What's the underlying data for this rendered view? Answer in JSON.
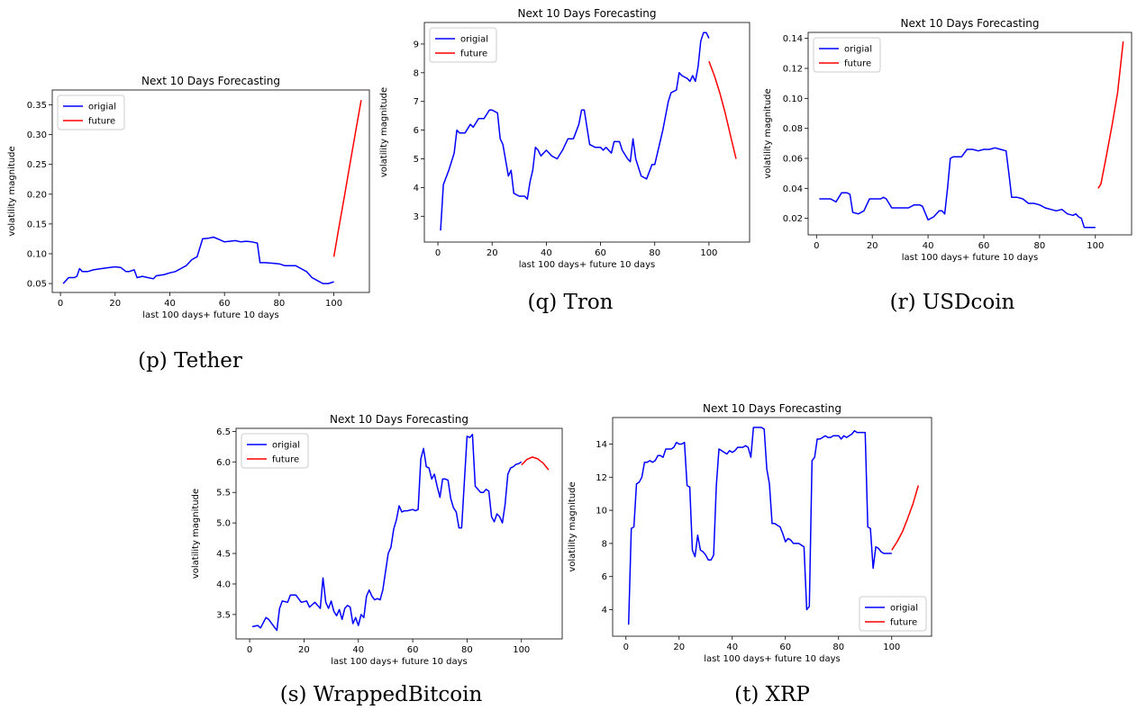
{
  "chart_data": [
    {
      "type": "line",
      "caption": "(p) Tether",
      "title": "Next 10 Days Forecasting",
      "xlabel": "last 100 days+ future 10 days",
      "ylabel": "volatility magnitude",
      "xlim": [
        -3,
        113
      ],
      "ylim": [
        0.035,
        0.375
      ],
      "xticks": [
        0,
        20,
        40,
        60,
        80,
        100
      ],
      "xtick_labels": [
        "0",
        "20",
        "40",
        "60",
        "80",
        "100"
      ],
      "yticks": [
        0.05,
        0.1,
        0.15,
        0.2,
        0.25,
        0.3,
        0.35
      ],
      "ytick_labels": [
        "0.05",
        "0.10",
        "0.15",
        "0.20",
        "0.25",
        "0.30",
        "0.35"
      ],
      "legend": "top-left",
      "series": [
        {
          "name": "origial",
          "color": "#0000ff",
          "x": [
            1,
            2,
            3,
            5,
            6,
            7,
            8,
            10,
            12,
            15,
            18,
            20,
            22,
            24,
            25,
            27,
            28,
            30,
            32,
            34,
            35,
            38,
            40,
            42,
            44,
            46,
            48,
            50,
            52,
            54,
            56,
            58,
            60,
            62,
            64,
            66,
            68,
            70,
            72,
            73,
            75,
            78,
            80,
            82,
            84,
            86,
            88,
            90,
            92,
            94,
            96,
            98,
            100
          ],
          "y": [
            0.05,
            0.055,
            0.06,
            0.06,
            0.062,
            0.075,
            0.07,
            0.07,
            0.073,
            0.075,
            0.077,
            0.078,
            0.077,
            0.07,
            0.07,
            0.073,
            0.06,
            0.062,
            0.06,
            0.058,
            0.063,
            0.065,
            0.068,
            0.07,
            0.075,
            0.08,
            0.09,
            0.095,
            0.125,
            0.126,
            0.128,
            0.124,
            0.12,
            0.121,
            0.122,
            0.12,
            0.121,
            0.12,
            0.118,
            0.085,
            0.085,
            0.084,
            0.083,
            0.08,
            0.08,
            0.08,
            0.075,
            0.07,
            0.06,
            0.055,
            0.05,
            0.05,
            0.053
          ]
        },
        {
          "name": "future",
          "color": "#ff0000",
          "x": [
            100,
            102,
            104,
            106,
            108,
            110
          ],
          "y": [
            0.095,
            0.148,
            0.2,
            0.254,
            0.306,
            0.358
          ]
        }
      ]
    },
    {
      "type": "line",
      "caption": "(q) Tron",
      "title": "Next 10 Days Forecasting",
      "xlabel": "last 100 days+ future 10 days",
      "ylabel": "volatility magnitude",
      "xlim": [
        -5,
        115
      ],
      "ylim": [
        2.1,
        9.75
      ],
      "xticks": [
        0,
        20,
        40,
        60,
        80,
        100
      ],
      "xtick_labels": [
        "0",
        "20",
        "40",
        "60",
        "80",
        "100"
      ],
      "yticks": [
        3,
        4,
        5,
        6,
        7,
        8,
        9
      ],
      "ytick_labels": [
        "3",
        "4",
        "5",
        "6",
        "7",
        "8",
        "9"
      ],
      "legend": "top-left",
      "series": [
        {
          "name": "origial",
          "color": "#0000ff",
          "x": [
            1,
            2,
            4,
            6,
            7,
            8,
            10,
            12,
            13,
            15,
            17,
            19,
            20,
            22,
            23,
            24,
            26,
            27,
            28,
            30,
            32,
            33,
            34,
            35,
            36,
            37,
            38,
            40,
            42,
            44,
            46,
            48,
            50,
            52,
            53,
            54,
            56,
            58,
            60,
            61,
            62,
            64,
            65,
            66,
            67,
            68,
            70,
            71,
            72,
            73,
            75,
            77,
            79,
            80,
            82,
            83,
            85,
            86,
            88,
            89,
            90,
            92,
            93,
            94,
            95,
            96,
            97,
            98,
            99,
            100
          ],
          "y": [
            2.5,
            4.1,
            4.6,
            5.2,
            6.0,
            5.9,
            5.9,
            6.2,
            6.1,
            6.4,
            6.4,
            6.7,
            6.7,
            6.6,
            5.7,
            5.5,
            4.4,
            4.6,
            3.8,
            3.7,
            3.7,
            3.6,
            4.2,
            4.6,
            5.4,
            5.3,
            5.1,
            5.3,
            5.1,
            5.0,
            5.3,
            5.7,
            5.7,
            6.2,
            6.7,
            6.7,
            5.5,
            5.4,
            5.4,
            5.3,
            5.4,
            5.2,
            5.6,
            5.6,
            5.6,
            5.3,
            5.0,
            4.9,
            5.7,
            5.0,
            4.4,
            4.3,
            4.8,
            4.8,
            5.6,
            6.0,
            7.0,
            7.3,
            7.4,
            8.0,
            7.9,
            7.8,
            7.7,
            7.9,
            7.7,
            8.2,
            9.1,
            9.4,
            9.4,
            9.2
          ]
        },
        {
          "name": "future",
          "color": "#ff0000",
          "x": [
            100,
            102,
            104,
            106,
            108,
            110
          ],
          "y": [
            8.4,
            7.9,
            7.3,
            6.6,
            5.8,
            5.0
          ]
        }
      ]
    },
    {
      "type": "line",
      "caption": "(r) USDcoin",
      "title": "Next 10 Days Forecasting",
      "xlabel": "last 100 days+ future 10 days",
      "ylabel": "volatility magnitude",
      "xlim": [
        -3,
        113
      ],
      "ylim": [
        0.009,
        0.144
      ],
      "xticks": [
        0,
        20,
        40,
        60,
        80,
        100
      ],
      "xtick_labels": [
        "0",
        "20",
        "40",
        "60",
        "80",
        "100"
      ],
      "yticks": [
        0.02,
        0.04,
        0.06,
        0.08,
        0.1,
        0.12,
        0.14
      ],
      "ytick_labels": [
        "0.02",
        "0.04",
        "0.06",
        "0.08",
        "0.10",
        "0.12",
        "0.14"
      ],
      "legend": "top-left",
      "series": [
        {
          "name": "origial",
          "color": "#0000ff",
          "x": [
            1,
            3,
            5,
            7,
            9,
            11,
            12,
            13,
            15,
            17,
            19,
            21,
            23,
            24,
            25,
            27,
            29,
            31,
            33,
            35,
            37,
            38,
            40,
            42,
            44,
            45,
            46,
            47,
            48,
            49,
            50,
            52,
            54,
            56,
            58,
            60,
            62,
            64,
            66,
            68,
            69,
            70,
            72,
            74,
            76,
            78,
            80,
            82,
            84,
            86,
            88,
            90,
            92,
            93,
            94,
            95,
            96,
            98,
            100
          ],
          "y": [
            0.033,
            0.033,
            0.033,
            0.031,
            0.037,
            0.037,
            0.036,
            0.024,
            0.023,
            0.025,
            0.033,
            0.033,
            0.033,
            0.034,
            0.033,
            0.027,
            0.027,
            0.027,
            0.027,
            0.029,
            0.029,
            0.028,
            0.019,
            0.021,
            0.025,
            0.025,
            0.023,
            0.04,
            0.06,
            0.061,
            0.061,
            0.061,
            0.066,
            0.066,
            0.065,
            0.066,
            0.066,
            0.067,
            0.066,
            0.065,
            0.05,
            0.034,
            0.034,
            0.033,
            0.03,
            0.03,
            0.029,
            0.027,
            0.026,
            0.025,
            0.026,
            0.023,
            0.022,
            0.023,
            0.021,
            0.02,
            0.014,
            0.014,
            0.014
          ]
        },
        {
          "name": "future",
          "color": "#ff0000",
          "x": [
            101,
            102,
            104,
            106,
            108,
            110
          ],
          "y": [
            0.04,
            0.043,
            0.062,
            0.082,
            0.104,
            0.138
          ]
        }
      ]
    },
    {
      "type": "line",
      "caption": "(s) WrappedBitcoin",
      "title": "Next 10 Days Forecasting",
      "xlabel": "last 100 days+ future 10 days",
      "ylabel": "volatility magnitude",
      "xlim": [
        -5,
        115
      ],
      "ylim": [
        3.1,
        6.55
      ],
      "xticks": [
        0,
        20,
        40,
        60,
        80,
        100
      ],
      "xtick_labels": [
        "0",
        "20",
        "40",
        "60",
        "80",
        "100"
      ],
      "yticks": [
        3.5,
        4.0,
        4.5,
        5.0,
        5.5,
        6.0,
        6.5
      ],
      "ytick_labels": [
        "3.5",
        "4.0",
        "4.5",
        "5.0",
        "5.5",
        "6.0",
        "6.5"
      ],
      "legend": "top-left",
      "series": [
        {
          "name": "origial",
          "color": "#0000ff",
          "x": [
            1,
            3,
            4,
            6,
            7,
            9,
            10,
            11,
            12,
            14,
            15,
            17,
            19,
            21,
            22,
            23,
            24,
            26,
            27,
            28,
            29,
            30,
            31,
            32,
            33,
            34,
            35,
            36,
            37,
            38,
            39,
            40,
            41,
            42,
            43,
            44,
            45,
            46,
            47,
            48,
            49,
            50,
            51,
            52,
            53,
            54,
            55,
            56,
            57,
            58,
            60,
            61,
            62,
            63,
            64,
            65,
            66,
            67,
            68,
            69,
            70,
            71,
            72,
            73,
            74,
            75,
            76,
            77,
            78,
            80,
            81,
            82,
            83,
            84,
            85,
            86,
            87,
            88,
            89,
            90,
            91,
            92,
            93,
            94,
            95,
            96,
            97,
            98,
            99,
            100
          ],
          "y": [
            3.3,
            3.32,
            3.28,
            3.45,
            3.42,
            3.3,
            3.24,
            3.6,
            3.72,
            3.7,
            3.82,
            3.82,
            3.7,
            3.72,
            3.62,
            3.66,
            3.7,
            3.6,
            4.1,
            3.7,
            3.6,
            3.72,
            3.55,
            3.48,
            3.58,
            3.42,
            3.6,
            3.65,
            3.62,
            3.35,
            3.45,
            3.32,
            3.5,
            3.45,
            3.8,
            3.9,
            3.8,
            3.74,
            3.76,
            3.74,
            3.9,
            4.2,
            4.5,
            4.6,
            4.9,
            5.05,
            5.28,
            5.18,
            5.2,
            5.2,
            5.22,
            5.2,
            5.22,
            6.05,
            6.22,
            5.92,
            5.9,
            5.72,
            5.8,
            5.6,
            5.42,
            5.72,
            5.72,
            5.7,
            5.4,
            5.25,
            5.18,
            4.92,
            4.92,
            6.42,
            6.4,
            6.45,
            5.6,
            5.55,
            5.5,
            5.5,
            5.55,
            5.52,
            5.1,
            5.02,
            5.15,
            5.1,
            5.0,
            5.3,
            5.8,
            5.9,
            5.92,
            5.96,
            5.97,
            6.0
          ]
        },
        {
          "name": "future",
          "color": "#ff0000",
          "x": [
            100,
            102,
            104,
            106,
            108,
            110
          ],
          "y": [
            5.95,
            6.04,
            6.08,
            6.05,
            5.98,
            5.87
          ]
        }
      ]
    },
    {
      "type": "line",
      "caption": "(t) XRP",
      "title": "Next 10 Days Forecasting",
      "xlabel": "last 100 days+ future 10 days",
      "ylabel": "volatility magnitude",
      "xlim": [
        -5,
        115
      ],
      "ylim": [
        2.4,
        15.6
      ],
      "xticks": [
        0,
        20,
        40,
        60,
        80,
        100
      ],
      "xtick_labels": [
        "0",
        "20",
        "40",
        "60",
        "80",
        "100"
      ],
      "yticks": [
        4,
        6,
        8,
        10,
        12,
        14
      ],
      "ytick_labels": [
        "4",
        "6",
        "8",
        "10",
        "12",
        "14"
      ],
      "legend": "bottom-right",
      "series": [
        {
          "name": "origial",
          "color": "#0000ff",
          "x": [
            1,
            2,
            3,
            4,
            5,
            6,
            7,
            8,
            9,
            10,
            11,
            12,
            13,
            14,
            15,
            16,
            17,
            18,
            19,
            20,
            21,
            22,
            23,
            24,
            25,
            26,
            27,
            28,
            29,
            30,
            31,
            32,
            33,
            34,
            35,
            36,
            37,
            38,
            39,
            40,
            41,
            42,
            43,
            44,
            45,
            46,
            47,
            48,
            49,
            50,
            51,
            52,
            53,
            54,
            55,
            56,
            57,
            58,
            59,
            60,
            61,
            62,
            63,
            64,
            65,
            66,
            67,
            68,
            69,
            70,
            71,
            72,
            73,
            74,
            75,
            76,
            77,
            78,
            79,
            80,
            81,
            82,
            83,
            84,
            85,
            86,
            87,
            88,
            89,
            90,
            91,
            92,
            93,
            94,
            95,
            96,
            97,
            98,
            99,
            100
          ],
          "y": [
            3.1,
            8.9,
            9.0,
            11.6,
            11.7,
            12.0,
            12.9,
            12.9,
            13.0,
            12.9,
            13.0,
            13.3,
            13.3,
            13.2,
            13.7,
            13.7,
            13.7,
            13.8,
            14.1,
            14.0,
            14.0,
            14.1,
            11.5,
            11.4,
            7.6,
            7.2,
            8.5,
            7.6,
            7.5,
            7.3,
            7.0,
            7.0,
            7.3,
            11.5,
            13.7,
            13.6,
            13.5,
            13.4,
            13.6,
            13.5,
            13.6,
            13.8,
            13.8,
            13.8,
            13.9,
            13.8,
            13.2,
            15.0,
            15.0,
            15.0,
            15.0,
            14.9,
            12.5,
            11.6,
            9.2,
            9.2,
            9.1,
            9.0,
            8.6,
            8.1,
            8.3,
            8.2,
            8.0,
            8.0,
            8.0,
            7.9,
            7.8,
            4.0,
            4.2,
            13.0,
            13.2,
            14.3,
            14.3,
            14.4,
            14.5,
            14.4,
            14.4,
            14.5,
            14.5,
            14.5,
            14.3,
            14.5,
            14.4,
            14.5,
            14.6,
            14.8,
            14.7,
            14.7,
            14.7,
            14.7,
            9.0,
            8.9,
            6.5,
            7.8,
            7.7,
            7.5,
            7.4,
            7.4,
            7.4,
            7.4
          ]
        },
        {
          "name": "future",
          "color": "#ff0000",
          "x": [
            100,
            102,
            104,
            106,
            108,
            110
          ],
          "y": [
            7.6,
            8.1,
            8.7,
            9.5,
            10.4,
            11.5
          ]
        }
      ]
    }
  ]
}
